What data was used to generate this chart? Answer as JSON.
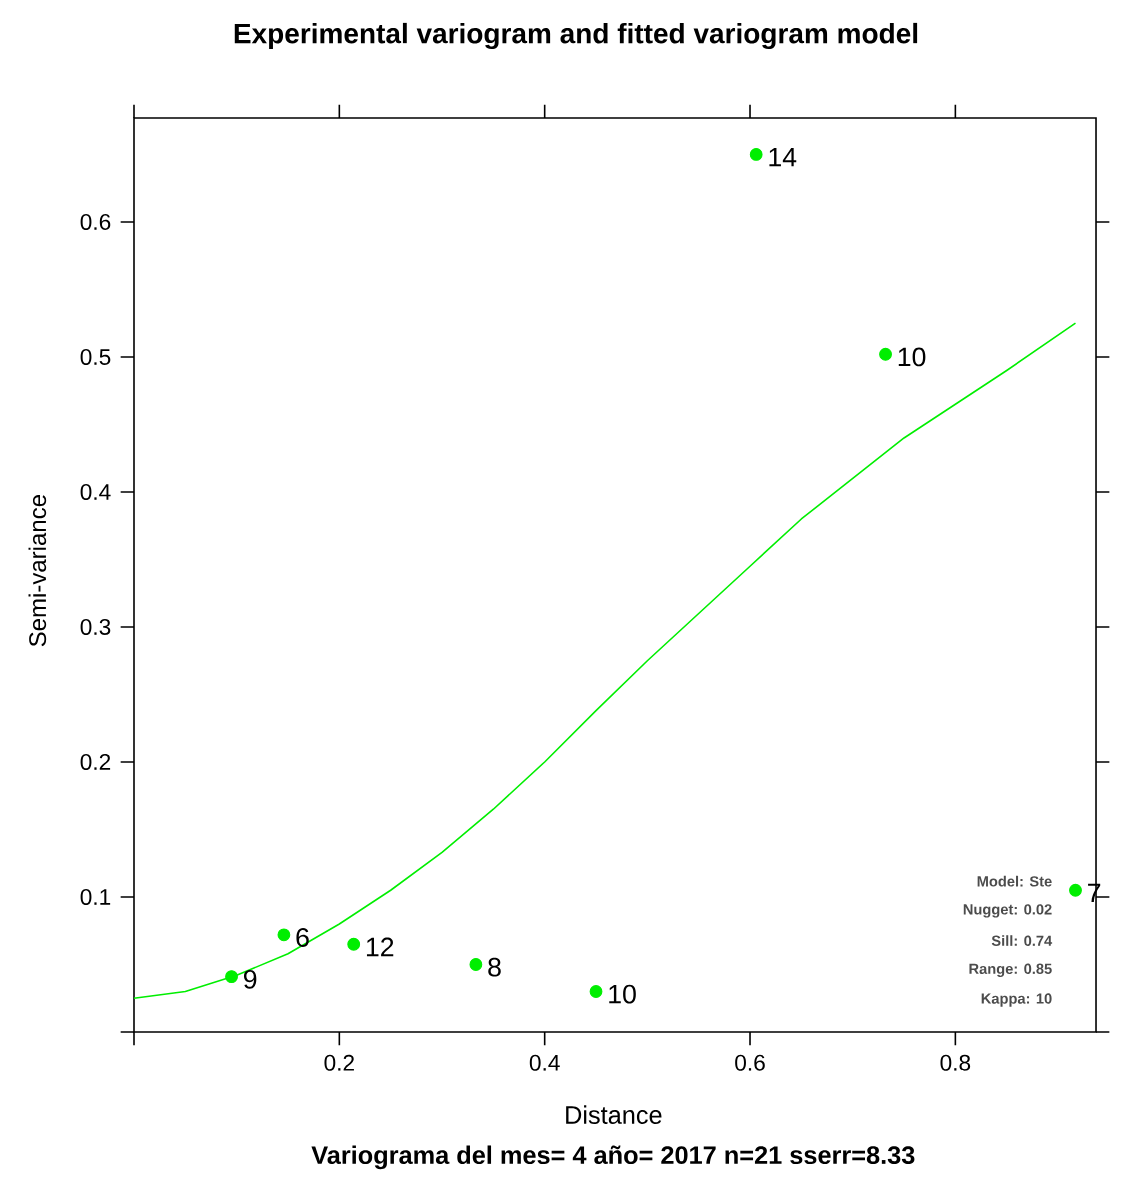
{
  "chart_data": {
    "type": "scatter",
    "title": "Experimental variogram and fitted variogram model",
    "subtitle": "Variograma del mes= 4 año= 2017 n=21 sserr=8.33",
    "xlabel": "Distance",
    "ylabel": "Semi-variance",
    "xlim": [
      0,
      0.937
    ],
    "ylim": [
      0,
      0.677
    ],
    "xticks": [
      {
        "value": 0,
        "label": null
      },
      0.2,
      0.4,
      0.6,
      0.8
    ],
    "yticks": [
      {
        "value": 0,
        "label": null
      },
      0.1,
      0.2,
      0.3,
      0.4,
      0.5,
      0.6
    ],
    "grid": false,
    "annotations": [
      "Model: Ste",
      "Nugget: 0.02",
      "Sill: 0.74",
      "Range: 0.85",
      "Kappa: 10",
      {
        "text": "9",
        "x": 0.095,
        "y": 0.041
      },
      {
        "text": "6",
        "x": 0.146,
        "y": 0.072
      },
      {
        "text": "12",
        "x": 0.214,
        "y": 0.065
      },
      {
        "text": "8",
        "x": 0.333,
        "y": 0.05
      },
      {
        "text": "10",
        "x": 0.45,
        "y": 0.03
      },
      {
        "text": "14",
        "x": 0.606,
        "y": 0.65
      },
      {
        "text": "10",
        "x": 0.732,
        "y": 0.502
      },
      {
        "text": "7",
        "x": 0.917,
        "y": 0.105
      }
    ],
    "series": [
      {
        "color": "#00ee00",
        "marker": "circle",
        "x": [
          0.095,
          0.146,
          0.214,
          0.333,
          0.45,
          0.606,
          0.732,
          0.917
        ],
        "values": [
          0.041,
          0.072,
          0.065,
          0.05,
          0.03,
          0.65,
          0.502,
          0.105
        ]
      },
      {
        "type": "line",
        "color": "#00ee00",
        "marker": "none",
        "line_style": "solid",
        "x": [
          0,
          0.05,
          0.1,
          0.15,
          0.2,
          0.25,
          0.3,
          0.35,
          0.4,
          0.45,
          0.5,
          0.55,
          0.6,
          0.65,
          0.7,
          0.75,
          0.8,
          0.85,
          0.917
        ],
        "values": [
          0.025,
          0.03,
          0.042,
          0.058,
          0.08,
          0.105,
          0.133,
          0.165,
          0.2,
          0.238,
          0.275,
          0.31,
          0.345,
          0.38,
          0.41,
          0.44,
          0.465,
          0.49,
          0.525
        ]
      }
    ]
  }
}
